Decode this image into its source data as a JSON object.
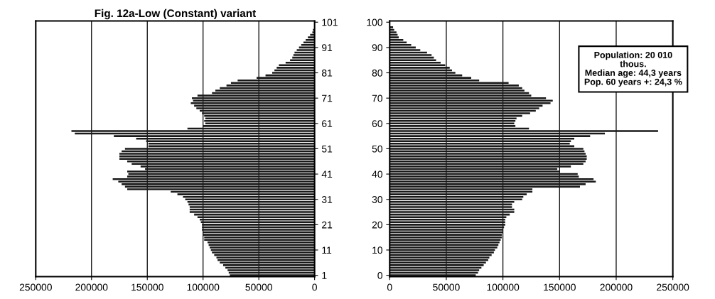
{
  "chart_data": [
    {
      "type": "bar",
      "orientation": "horizontal",
      "title": "Fig. 12a-Low (Constant) variant",
      "categories": [
        "101",
        null,
        null,
        null,
        null,
        null,
        null,
        null,
        null,
        null,
        "91",
        null,
        null,
        null,
        null,
        null,
        null,
        null,
        null,
        null,
        "81",
        null,
        null,
        null,
        null,
        null,
        null,
        null,
        null,
        null,
        "71",
        null,
        null,
        null,
        null,
        null,
        null,
        null,
        null,
        null,
        "61",
        null,
        null,
        null,
        null,
        null,
        null,
        null,
        null,
        null,
        "51",
        null,
        null,
        null,
        null,
        null,
        null,
        null,
        null,
        null,
        "41",
        null,
        null,
        null,
        null,
        null,
        null,
        null,
        null,
        null,
        "31",
        null,
        null,
        null,
        null,
        null,
        null,
        null,
        null,
        null,
        "21",
        null,
        null,
        null,
        null,
        null,
        null,
        null,
        null,
        null,
        "11",
        null,
        null,
        null,
        null,
        null,
        null,
        null,
        null,
        null,
        "1"
      ],
      "series": [
        {
          "color": "#1a1a1a",
          "values": [
            300,
            null,
            null,
            1500,
            2000,
            4000,
            6000,
            8000,
            10000,
            12000,
            14000,
            16000,
            18000,
            19000,
            20000,
            22000,
            26000,
            32000,
            34000,
            36000,
            38000,
            44000,
            52000,
            69000,
            75000,
            79000,
            85000,
            89000,
            92000,
            105000,
            110000,
            109000,
            111000,
            108000,
            106000,
            103000,
            101000,
            99000,
            98000,
            99000,
            98000,
            100000,
            114000,
            218000,
            215000,
            180000,
            160000,
            151000,
            149000,
            149000,
            170000,
            173000,
            175000,
            175000,
            175000,
            168000,
            164000,
            156000,
            152000,
            168000,
            167000,
            168000,
            181000,
            176000,
            173000,
            170000,
            168000,
            129000,
            123000,
            118000,
            116000,
            114000,
            113000,
            112000,
            112000,
            112000,
            108000,
            105000,
            103000,
            102000,
            101000,
            101000,
            101000,
            100000,
            100000,
            99000,
            99000,
            96000,
            95000,
            94000,
            93000,
            92000,
            90000,
            88000,
            87000,
            85000,
            82000,
            80000,
            78000,
            77000,
            76000
          ]
        }
      ],
      "xlim": [
        250000,
        0
      ],
      "xticks": [
        250000,
        200000,
        150000,
        100000,
        50000,
        0
      ],
      "grid": "x"
    },
    {
      "type": "bar",
      "orientation": "horizontal",
      "categories": [
        "100",
        null,
        null,
        null,
        null,
        null,
        null,
        null,
        null,
        null,
        "90",
        null,
        null,
        null,
        null,
        null,
        null,
        null,
        null,
        null,
        "80",
        null,
        null,
        null,
        null,
        null,
        null,
        null,
        null,
        null,
        "70",
        null,
        null,
        null,
        null,
        null,
        null,
        null,
        null,
        null,
        "60",
        null,
        null,
        null,
        null,
        null,
        null,
        null,
        null,
        null,
        "50",
        null,
        null,
        null,
        null,
        null,
        null,
        null,
        null,
        null,
        "40",
        null,
        null,
        null,
        null,
        null,
        null,
        null,
        null,
        null,
        "30",
        null,
        null,
        null,
        null,
        null,
        null,
        null,
        null,
        null,
        "20",
        null,
        null,
        null,
        null,
        null,
        null,
        null,
        null,
        null,
        "10",
        null,
        null,
        null,
        null,
        null,
        null,
        null,
        null,
        null,
        "0"
      ],
      "series": [
        {
          "color": "#1a1a1a",
          "values": [
            null,
            null,
            3000,
            4000,
            6000,
            7000,
            8000,
            12000,
            15000,
            19000,
            23000,
            27000,
            33000,
            37000,
            39000,
            41000,
            45000,
            49000,
            53000,
            55000,
            58000,
            64000,
            72000,
            79000,
            105000,
            114000,
            117000,
            119000,
            123000,
            125000,
            138000,
            144000,
            142000,
            135000,
            132000,
            129000,
            124000,
            117000,
            112000,
            111000,
            110000,
            111000,
            123000,
            237000,
            190000,
            177000,
            163000,
            160000,
            159000,
            163000,
            171000,
            172000,
            173000,
            174000,
            174000,
            173000,
            171000,
            160000,
            148000,
            150000,
            166000,
            167000,
            180000,
            182000,
            173000,
            168000,
            126000,
            126000,
            121000,
            118000,
            117000,
            110000,
            108000,
            108000,
            110000,
            110000,
            106000,
            103000,
            102000,
            102000,
            102000,
            101000,
            100000,
            100000,
            99000,
            99000,
            98000,
            97000,
            96000,
            95000,
            93000,
            92000,
            90000,
            88000,
            87000,
            85000,
            83000,
            81000,
            79000,
            78000,
            76000
          ]
        }
      ],
      "xlim": [
        0,
        250000
      ],
      "xticks": [
        0,
        50000,
        100000,
        150000,
        200000,
        250000
      ],
      "grid": "x",
      "annotations": [
        "Population: 20 010\nthous.\nMedian age: 44,3 years\nPop. 60 years +: 24,3 %"
      ]
    }
  ]
}
